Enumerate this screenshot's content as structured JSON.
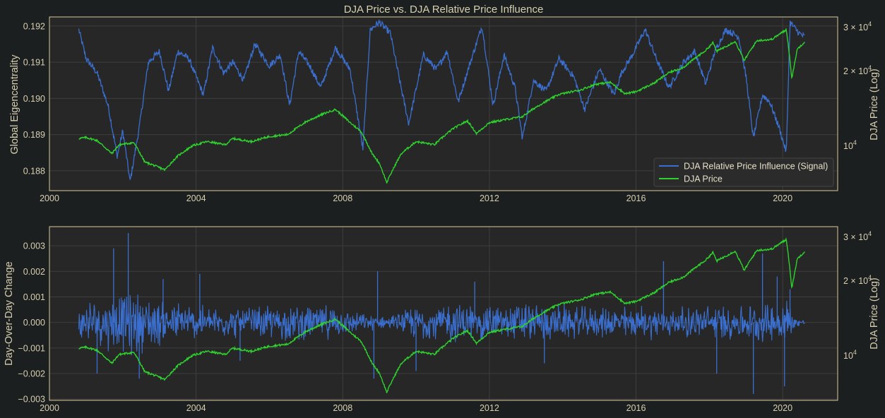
{
  "figure": {
    "background": "#1c1f20",
    "panel_background": "#272727",
    "spine_color": "#d8c89a",
    "grid_color": "#3e3e3e",
    "text_color": "#d8cfb0"
  },
  "chart_data": [
    {
      "type": "line",
      "title": "DJA Price vs. DJA Relative Price Influence",
      "xlabel": "",
      "ylabel": "Global Eigencentrality",
      "y2label": "DJA Price (Log)",
      "xlim": [
        2000.0,
        2021.5
      ],
      "ylim": [
        0.18745,
        0.19225
      ],
      "y2lim": [
        6600,
        33000
      ],
      "y2scale": "log",
      "grid": true,
      "legend_position": "lower-right",
      "xticks": [
        2000,
        2004,
        2008,
        2012,
        2016,
        2020
      ],
      "xtick_labels": [
        "2000",
        "2004",
        "2008",
        "2012",
        "2016",
        "2020"
      ],
      "yticks": [
        0.188,
        0.189,
        0.19,
        0.191,
        0.192
      ],
      "ytick_labels": [
        "0.188",
        "0.189",
        "0.190",
        "0.191",
        "0.192"
      ],
      "y2ticks": [
        10000,
        20000,
        30000
      ],
      "y2tick_labels": [
        {
          "base": "10",
          "exp": "4"
        },
        {
          "base": "2 × 10",
          "exp": "4"
        },
        {
          "base": "3 × 10",
          "exp": "4"
        }
      ],
      "series": [
        {
          "name": "DJA Relative Price Influence (Signal)",
          "axis": "left",
          "color": "#3a6fcf",
          "points": [
            [
              2000.8,
              0.1919
            ],
            [
              2001.0,
              0.1911
            ],
            [
              2001.3,
              0.1907
            ],
            [
              2001.6,
              0.1898
            ],
            [
              2001.85,
              0.1884
            ],
            [
              2002.0,
              0.1891
            ],
            [
              2002.2,
              0.1877
            ],
            [
              2002.45,
              0.1892
            ],
            [
              2002.7,
              0.191
            ],
            [
              2003.0,
              0.1913
            ],
            [
              2003.25,
              0.1902
            ],
            [
              2003.5,
              0.1913
            ],
            [
              2003.8,
              0.1911
            ],
            [
              2004.2,
              0.1901
            ],
            [
              2004.45,
              0.1914
            ],
            [
              2004.75,
              0.1907
            ],
            [
              2005.0,
              0.191
            ],
            [
              2005.3,
              0.1905
            ],
            [
              2005.6,
              0.1915
            ],
            [
              2006.0,
              0.1909
            ],
            [
              2006.3,
              0.1912
            ],
            [
              2006.55,
              0.1898
            ],
            [
              2006.8,
              0.1913
            ],
            [
              2007.1,
              0.1909
            ],
            [
              2007.4,
              0.1903
            ],
            [
              2007.8,
              0.1914
            ],
            [
              2008.2,
              0.1908
            ],
            [
              2008.55,
              0.1886
            ],
            [
              2008.75,
              0.1919
            ],
            [
              2009.0,
              0.1921
            ],
            [
              2009.3,
              0.1918
            ],
            [
              2009.55,
              0.1905
            ],
            [
              2009.8,
              0.1893
            ],
            [
              2010.2,
              0.1912
            ],
            [
              2010.55,
              0.1908
            ],
            [
              2010.85,
              0.1913
            ],
            [
              2011.15,
              0.1899
            ],
            [
              2011.45,
              0.1909
            ],
            [
              2011.8,
              0.192
            ],
            [
              2012.1,
              0.1898
            ],
            [
              2012.4,
              0.1912
            ],
            [
              2012.7,
              0.1903
            ],
            [
              2012.9,
              0.1889
            ],
            [
              2013.2,
              0.1905
            ],
            [
              2013.55,
              0.1902
            ],
            [
              2013.9,
              0.1911
            ],
            [
              2014.3,
              0.1906
            ],
            [
              2014.6,
              0.1897
            ],
            [
              2015.0,
              0.1908
            ],
            [
              2015.4,
              0.1901
            ],
            [
              2015.6,
              0.1907
            ],
            [
              2015.9,
              0.1912
            ],
            [
              2016.25,
              0.1919
            ],
            [
              2016.55,
              0.1911
            ],
            [
              2016.9,
              0.1903
            ],
            [
              2017.3,
              0.191
            ],
            [
              2017.6,
              0.1913
            ],
            [
              2017.9,
              0.1904
            ],
            [
              2018.15,
              0.1913
            ],
            [
              2018.45,
              0.1919
            ],
            [
              2018.8,
              0.1917
            ],
            [
              2019.0,
              0.1906
            ],
            [
              2019.2,
              0.1889
            ],
            [
              2019.45,
              0.1901
            ],
            [
              2019.65,
              0.1899
            ],
            [
              2019.9,
              0.1892
            ],
            [
              2020.1,
              0.1885
            ],
            [
              2020.2,
              0.1921
            ],
            [
              2020.45,
              0.1918
            ],
            [
              2020.6,
              0.1917
            ]
          ]
        },
        {
          "name": "DJA Price",
          "axis": "right",
          "color": "#2ed32e",
          "points": [
            [
              2000.8,
              10700
            ],
            [
              2001.0,
              10800
            ],
            [
              2001.3,
              10500
            ],
            [
              2001.7,
              9300
            ],
            [
              2001.9,
              10100
            ],
            [
              2002.3,
              10300
            ],
            [
              2002.6,
              8600
            ],
            [
              2002.8,
              8400
            ],
            [
              2003.15,
              8000
            ],
            [
              2003.5,
              9100
            ],
            [
              2003.9,
              10000
            ],
            [
              2004.3,
              10400
            ],
            [
              2004.8,
              10100
            ],
            [
              2005.0,
              10700
            ],
            [
              2005.5,
              10400
            ],
            [
              2006.0,
              10900
            ],
            [
              2006.5,
              11100
            ],
            [
              2007.0,
              12500
            ],
            [
              2007.5,
              13500
            ],
            [
              2007.8,
              14000
            ],
            [
              2008.2,
              12400
            ],
            [
              2008.5,
              11400
            ],
            [
              2008.8,
              9300
            ],
            [
              2009.0,
              8500
            ],
            [
              2009.2,
              7100
            ],
            [
              2009.6,
              9300
            ],
            [
              2010.0,
              10400
            ],
            [
              2010.5,
              10100
            ],
            [
              2011.0,
              11700
            ],
            [
              2011.4,
              12600
            ],
            [
              2011.65,
              11200
            ],
            [
              2012.0,
              12400
            ],
            [
              2012.5,
              12800
            ],
            [
              2012.9,
              13100
            ],
            [
              2013.3,
              14400
            ],
            [
              2013.9,
              16100
            ],
            [
              2014.5,
              16800
            ],
            [
              2014.9,
              17700
            ],
            [
              2015.3,
              18000
            ],
            [
              2015.7,
              16200
            ],
            [
              2016.0,
              16500
            ],
            [
              2016.5,
              17900
            ],
            [
              2016.9,
              19700
            ],
            [
              2017.3,
              20700
            ],
            [
              2017.9,
              24200
            ],
            [
              2018.1,
              26000
            ],
            [
              2018.2,
              24000
            ],
            [
              2018.7,
              26300
            ],
            [
              2018.95,
              22000
            ],
            [
              2019.3,
              26500
            ],
            [
              2019.7,
              26800
            ],
            [
              2020.1,
              29300
            ],
            [
              2020.2,
              22000
            ],
            [
              2020.25,
              18500
            ],
            [
              2020.4,
              24500
            ],
            [
              2020.6,
              26200
            ]
          ]
        }
      ]
    },
    {
      "type": "line",
      "title": "",
      "xlabel": "",
      "ylabel": "Day-Over-Day Change",
      "y2label": "DJA Price (Log)",
      "xlim": [
        2000.0,
        2021.5
      ],
      "ylim": [
        -0.00305,
        0.00375
      ],
      "y2lim": [
        6600,
        33000
      ],
      "y2scale": "log",
      "grid": true,
      "xticks": [
        2000,
        2004,
        2008,
        2012,
        2016,
        2020
      ],
      "xtick_labels": [
        "2000",
        "2004",
        "2008",
        "2012",
        "2016",
        "2020"
      ],
      "yticks": [
        -0.003,
        -0.002,
        -0.001,
        0.0,
        0.001,
        0.002,
        0.003
      ],
      "ytick_labels": [
        "−0.003",
        "−0.002",
        "−0.001",
        "0.000",
        "0.001",
        "0.002",
        "0.003"
      ],
      "y2ticks": [
        10000,
        20000,
        30000
      ],
      "y2tick_labels": [
        {
          "base": "10",
          "exp": "4"
        },
        {
          "base": "2 × 10",
          "exp": "4"
        },
        {
          "base": "3 × 10",
          "exp": "4"
        }
      ],
      "series": [
        {
          "name": "Day-Over-Day Change",
          "axis": "left",
          "color": "#3a6fcf",
          "kind": "volatility",
          "x_range": [
            2000.8,
            2020.6
          ],
          "volatility": [
            [
              2000.8,
              0.0006
            ],
            [
              2001.5,
              0.0009
            ],
            [
              2002.3,
              0.0011
            ],
            [
              2003.0,
              0.0008
            ],
            [
              2004.0,
              0.0006
            ],
            [
              2005.0,
              0.0005
            ],
            [
              2006.0,
              0.0006
            ],
            [
              2007.5,
              0.0006
            ],
            [
              2008.5,
              0.0003
            ],
            [
              2009.3,
              0.0002
            ],
            [
              2010.0,
              0.0006
            ],
            [
              2011.0,
              0.0007
            ],
            [
              2012.0,
              0.0006
            ],
            [
              2013.0,
              0.0007
            ],
            [
              2014.0,
              0.0006
            ],
            [
              2015.0,
              0.0005
            ],
            [
              2016.0,
              0.0006
            ],
            [
              2017.0,
              0.0005
            ],
            [
              2018.0,
              0.0006
            ],
            [
              2019.0,
              0.0006
            ],
            [
              2019.8,
              0.0007
            ],
            [
              2020.15,
              0.0009
            ],
            [
              2020.3,
              0.0002
            ],
            [
              2020.6,
              0.0001
            ]
          ],
          "spikes": [
            [
              2002.15,
              0.0035
            ],
            [
              2001.75,
              0.0029
            ],
            [
              2002.45,
              -0.0022
            ],
            [
              2001.3,
              -0.002
            ],
            [
              2003.1,
              0.0017
            ],
            [
              2004.1,
              0.0019
            ],
            [
              2008.95,
              0.002
            ],
            [
              2008.85,
              -0.0022
            ],
            [
              2010.0,
              -0.0019
            ],
            [
              2013.5,
              -0.0016
            ],
            [
              2016.75,
              0.0024
            ],
            [
              2018.2,
              -0.002
            ],
            [
              2019.2,
              -0.0028
            ],
            [
              2019.45,
              0.0027
            ],
            [
              2019.85,
              0.0018
            ],
            [
              2020.05,
              -0.0025
            ],
            [
              2020.2,
              0.0013
            ],
            [
              2005.2,
              -0.0015
            ],
            [
              2011.6,
              0.0016
            ]
          ]
        },
        {
          "name": "DJA Price",
          "axis": "right",
          "color": "#2ed32e",
          "same_as_panel_1": true
        }
      ]
    }
  ],
  "legend": {
    "items": [
      {
        "label": "DJA Relative Price Influence (Signal)",
        "color": "#3a6fcf"
      },
      {
        "label": "DJA Price",
        "color": "#2ed32e"
      }
    ]
  }
}
